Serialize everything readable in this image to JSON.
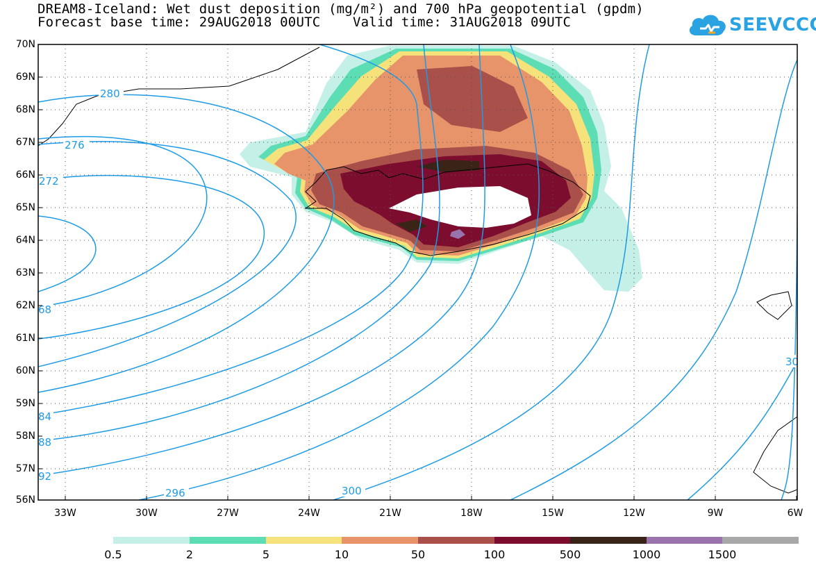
{
  "header": {
    "title_line1": "DREAM8-Iceland: Wet dust deposition (mg/m²) and 700 hPa geopotential (gpdm)",
    "base_time_label": "Forecast base time: 29AUG2018 00UTC",
    "valid_time_label": "Valid time: 31AUG2018 09UTC"
  },
  "logo": {
    "text": "SEEVCCC",
    "color": "#2ba3e3"
  },
  "axes": {
    "lat_labels": [
      "70N",
      "69N",
      "68N",
      "67N",
      "66N",
      "65N",
      "64N",
      "63N",
      "62N",
      "61N",
      "60N",
      "59N",
      "58N",
      "57N",
      "56N"
    ],
    "lon_labels": [
      "33W",
      "30W",
      "27W",
      "24W",
      "21W",
      "18W",
      "15W",
      "12W",
      "9W",
      "6W"
    ]
  },
  "contours": {
    "color": "#1e9be6",
    "labels": [
      "280",
      "276",
      "272",
      "68",
      "84",
      "88",
      "92",
      "296",
      "300",
      "30"
    ]
  },
  "legend": {
    "colors": [
      "#c4f0e8",
      "#5cddb4",
      "#f5e27a",
      "#e8946a",
      "#a9504a",
      "#7c0d2e",
      "#3a2418",
      "#9a72ac",
      "#a8a8a8"
    ],
    "thresholds": [
      "0.5",
      "2",
      "5",
      "10",
      "50",
      "100",
      "500",
      "1000",
      "1500"
    ]
  }
}
